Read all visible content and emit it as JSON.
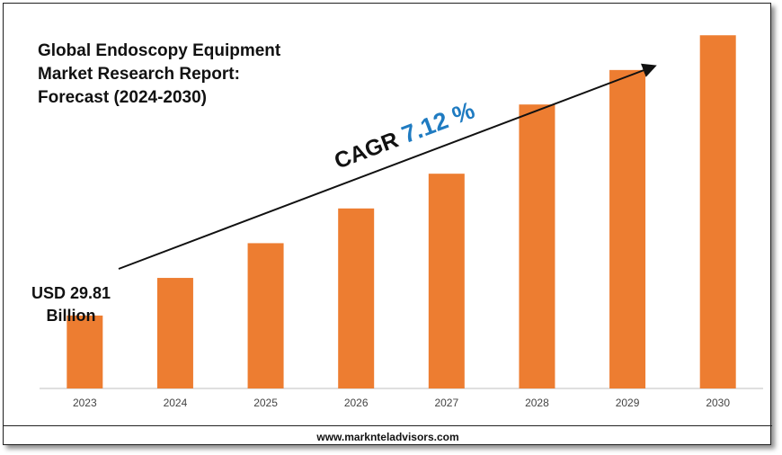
{
  "title_lines": [
    "Global Endoscopy Equipment",
    "Market Research Report:",
    "Forecast (2024-2030)"
  ],
  "start_label_lines": [
    "USD 29.81",
    "Billion"
  ],
  "cagr": {
    "label": "CAGR",
    "value": "7.12 %"
  },
  "footer": "www.marknteladvisors.com",
  "colors": {
    "bar": "#ED7D31",
    "cagr_value": "#1F7BC1",
    "axis": "#BFBFBF",
    "arrow": "#111111"
  },
  "chart_data": {
    "type": "bar",
    "title": "Global Endoscopy Equipment Market Research Report: Forecast (2024-2030)",
    "categories": [
      "2023",
      "2024",
      "2025",
      "2026",
      "2027",
      "2028",
      "2029",
      "2030"
    ],
    "values": [
      29.81,
      45.2,
      59.4,
      73.6,
      87.8,
      116.1,
      130.2,
      144.4
    ],
    "annotations": [
      "USD 29.81 Billion",
      "CAGR 7.12 %"
    ],
    "ylim": [
      0,
      150
    ],
    "grid": false,
    "legend": "none"
  }
}
